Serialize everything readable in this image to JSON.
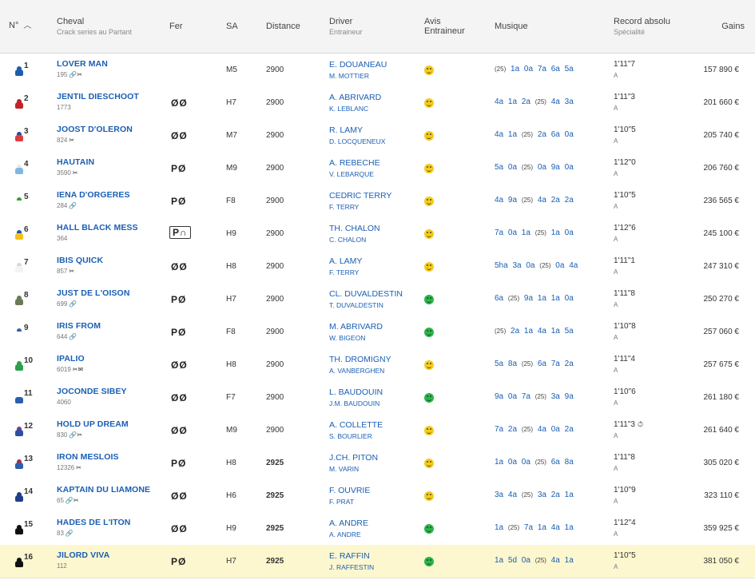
{
  "header": {
    "num": "N°",
    "cheval": "Cheval",
    "cheval_sub": "Crack series au Partant",
    "fer": "Fer",
    "sa": "SA",
    "distance": "Distance",
    "driver": "Driver",
    "driver_sub": "Entraineur",
    "avis": "Avis",
    "avis2": "Entraineur",
    "musique": "Musique",
    "record": "Record absolu",
    "record_sub": "Spécialité",
    "gains": "Gains"
  },
  "colors": {
    "link": "#1a5fb4",
    "highlight_row": "#fdf7cf",
    "avis_yellow": "#f2cb1f",
    "avis_green": "#2db34a"
  },
  "rows": [
    {
      "num": "1",
      "name": "LOVER MAN",
      "info": "195",
      "icons": "🔗✂",
      "fer": "",
      "fer_boxed": false,
      "sa": "M5",
      "dist": "2900",
      "dist_bold": false,
      "driver": "E. DOUANEAU",
      "trainer": "M. MOTTIER",
      "avis": "yellow",
      "music_y": "(25)",
      "music": "1a 0a 7a 6a 5a",
      "music_pre": "",
      "record": "1'11\"7",
      "rec_spec": "A",
      "chrono": "",
      "gains": "157 890 €",
      "silk": [
        "#1e5cb0",
        "#1e5cb0"
      ],
      "highlight": false
    },
    {
      "num": "2",
      "name": "JENTIL DIESCHOOT",
      "info": "1773",
      "icons": "",
      "fer": "ØØ",
      "fer_boxed": false,
      "sa": "H7",
      "dist": "2900",
      "dist_bold": false,
      "driver": "A. ABRIVARD",
      "trainer": "K. LEBLANC",
      "avis": "yellow",
      "music_pre": "4a 1a 2a",
      "music_y": "(25)",
      "music": "4a 3a",
      "record": "1'11\"3",
      "rec_spec": "A",
      "chrono": "",
      "gains": "201 660 €",
      "silk": [
        "#c0242a",
        "#c0242a"
      ],
      "highlight": false
    },
    {
      "num": "3",
      "name": "JOOST D'OLERON",
      "info": "824",
      "icons": "✂",
      "fer": "ØØ",
      "fer_boxed": false,
      "sa": "M7",
      "dist": "2900",
      "dist_bold": false,
      "driver": "R. LAMY",
      "trainer": "D. LOCQUENEUX",
      "avis": "yellow",
      "music_pre": "4a 1a",
      "music_y": "(25)",
      "music": "2a 6a 0a",
      "record": "1'10\"5",
      "rec_spec": "A",
      "chrono": "",
      "gains": "205 740 €",
      "silk": [
        "#e23b3b",
        "#2b4aa0"
      ],
      "highlight": false
    },
    {
      "num": "4",
      "name": "HAUTAIN",
      "info": "3590",
      "icons": "✂",
      "fer": "PØ",
      "fer_boxed": false,
      "sa": "M9",
      "dist": "2900",
      "dist_bold": false,
      "driver": "A. REBECHE",
      "trainer": "V. LEBARQUE",
      "avis": "yellow",
      "music_pre": "5a 0a",
      "music_y": "(25)",
      "music": "0a 9a 0a",
      "record": "1'12\"0",
      "rec_spec": "A",
      "chrono": "",
      "gains": "206 760 €",
      "silk": [
        "#7fb7e0",
        "#e8e8e8"
      ],
      "highlight": false
    },
    {
      "num": "5",
      "name": "IENA D'ORGERES",
      "info": "284",
      "icons": "🔗",
      "fer": "PØ",
      "fer_boxed": false,
      "sa": "F8",
      "dist": "2900",
      "dist_bold": false,
      "driver": "CEDRIC TERRY",
      "trainer": "F. TERRY",
      "avis": "yellow",
      "music_pre": "4a 9a",
      "music_y": "(25)",
      "music": "4a 2a 2a",
      "record": "1'10\"5",
      "rec_spec": "A",
      "chrono": "",
      "gains": "236 565 €",
      "silk": [
        "#ffffff",
        "#3a9b3a"
      ],
      "highlight": false
    },
    {
      "num": "6",
      "name": "HALL BLACK MESS",
      "info": "364",
      "icons": "",
      "fer": "P∩",
      "fer_boxed": true,
      "sa": "H9",
      "dist": "2900",
      "dist_bold": false,
      "driver": "TH. CHALON",
      "trainer": "C. CHALON",
      "avis": "yellow",
      "music_pre": "7a 0a 1a",
      "music_y": "(25)",
      "music": "1a 0a",
      "record": "1'12\"6",
      "rec_spec": "A",
      "chrono": "",
      "gains": "245 100 €",
      "silk": [
        "#f2c21a",
        "#2253a8"
      ],
      "highlight": false
    },
    {
      "num": "7",
      "name": "IBIS QUICK",
      "info": "857",
      "icons": "✂",
      "fer": "ØØ",
      "fer_boxed": false,
      "sa": "H8",
      "dist": "2900",
      "dist_bold": false,
      "driver": "A. LAMY",
      "trainer": "F. TERRY",
      "avis": "yellow",
      "music_pre": "5ha 3a 0a",
      "music_y": "(25)",
      "music": "0a 4a",
      "record": "1'11\"1",
      "rec_spec": "A",
      "chrono": "",
      "gains": "247 310 €",
      "silk": [
        "#f4f4f4",
        "#d8d8d8"
      ],
      "highlight": false
    },
    {
      "num": "8",
      "name": "JUST DE L'OISON",
      "info": "699",
      "icons": "🔗",
      "fer": "PØ",
      "fer_boxed": false,
      "sa": "H7",
      "dist": "2900",
      "dist_bold": false,
      "driver": "CL. DUVALDESTIN",
      "trainer": "T. DUVALDESTIN",
      "avis": "green",
      "music_pre": "6a",
      "music_y": "(25)",
      "music": "9a 1a 1a 0a",
      "record": "1'11\"8",
      "rec_spec": "A",
      "chrono": "",
      "gains": "250 270 €",
      "silk": [
        "#6c7a57",
        "#6c7a57"
      ],
      "highlight": false
    },
    {
      "num": "9",
      "name": "IRIS FROM",
      "info": "644",
      "icons": "🔗",
      "fer": "PØ",
      "fer_boxed": false,
      "sa": "F8",
      "dist": "2900",
      "dist_bold": false,
      "driver": "M. ABRIVARD",
      "trainer": "W. BIGEON",
      "avis": "green",
      "music_pre": "",
      "music_y": "(25)",
      "music": "2a 1a 4a 1a 5a",
      "record": "1'10\"8",
      "rec_spec": "A",
      "chrono": "",
      "gains": "257 060 €",
      "silk": [
        "#ffffff",
        "#3b5fb0"
      ],
      "highlight": false
    },
    {
      "num": "10",
      "name": "IPALIO",
      "info": "6019",
      "icons": "✂✉",
      "fer": "ØØ",
      "fer_boxed": false,
      "sa": "H8",
      "dist": "2900",
      "dist_bold": false,
      "driver": "TH. DROMIGNY",
      "trainer": "A. VANBERGHEN",
      "avis": "yellow",
      "music_pre": "5a 8a",
      "music_y": "(25)",
      "music": "6a 7a 2a",
      "record": "1'11\"4",
      "rec_spec": "A",
      "chrono": "",
      "gains": "257 675 €",
      "silk": [
        "#2aa14a",
        "#2aa14a"
      ],
      "highlight": false
    },
    {
      "num": "11",
      "name": "JOCONDE SIBEY",
      "info": "4060",
      "icons": "",
      "fer": "ØØ",
      "fer_boxed": false,
      "sa": "F7",
      "dist": "2900",
      "dist_bold": false,
      "driver": "L. BAUDOUIN",
      "trainer": "J.M. BAUDOUIN",
      "avis": "green",
      "music_pre": "9a 0a 7a",
      "music_y": "(25)",
      "music": "3a 9a",
      "record": "1'10\"6",
      "rec_spec": "A",
      "chrono": "",
      "gains": "261 180 €",
      "silk": [
        "#2d5dae",
        "#ffffff"
      ],
      "highlight": false
    },
    {
      "num": "12",
      "name": "HOLD UP DREAM",
      "info": "830",
      "icons": "🔗✂",
      "fer": "ØØ",
      "fer_boxed": false,
      "sa": "M9",
      "dist": "2900",
      "dist_bold": false,
      "driver": "A. COLLETTE",
      "trainer": "S. BOURLIER",
      "avis": "yellow",
      "music_pre": "7a 2a",
      "music_y": "(25)",
      "music": "4a 0a 2a",
      "record": "1'11\"3",
      "rec_spec": "A",
      "chrono": "⏱",
      "gains": "261 640 €",
      "silk": [
        "#2f4fa0",
        "#7a3a8a"
      ],
      "highlight": false
    },
    {
      "num": "13",
      "name": "IRON MESLOIS",
      "info": "12326",
      "icons": "✂",
      "fer": "PØ",
      "fer_boxed": false,
      "sa": "H8",
      "dist": "2925",
      "dist_bold": true,
      "driver": "J.CH. PITON",
      "trainer": "M. VARIN",
      "avis": "yellow",
      "music_pre": "1a 0a 0a",
      "music_y": "(25)",
      "music": "6a 8a",
      "record": "1'11\"8",
      "rec_spec": "A",
      "chrono": "",
      "gains": "305 020 €",
      "silk": [
        "#2f5fae",
        "#c02a2a"
      ],
      "highlight": false
    },
    {
      "num": "14",
      "name": "KAPTAIN DU LIAMONE",
      "info": "65",
      "icons": "🔗✂",
      "fer": "ØØ",
      "fer_boxed": false,
      "sa": "H6",
      "dist": "2925",
      "dist_bold": true,
      "driver": "F. OUVRIE",
      "trainer": "F. PRAT",
      "avis": "yellow",
      "music_pre": "3a 4a",
      "music_y": "(25)",
      "music": "3a 2a 1a",
      "record": "1'10\"9",
      "rec_spec": "A",
      "chrono": "",
      "gains": "323 110 €",
      "silk": [
        "#1e3f8a",
        "#1e3f8a"
      ],
      "highlight": false
    },
    {
      "num": "15",
      "name": "HADES DE L'ITON",
      "info": "83",
      "icons": "🔗",
      "fer": "ØØ",
      "fer_boxed": false,
      "sa": "H9",
      "dist": "2925",
      "dist_bold": true,
      "driver": "A. ANDRE",
      "trainer": "A. ANDRE",
      "avis": "green",
      "music_pre": "1a",
      "music_y": "(25)",
      "music": "7a 1a 4a 1a",
      "record": "1'12\"4",
      "rec_spec": "A",
      "chrono": "",
      "gains": "359 925 €",
      "silk": [
        "#111111",
        "#111111"
      ],
      "highlight": false
    },
    {
      "num": "16",
      "name": "JILORD VIVA",
      "info": "112",
      "icons": "",
      "fer": "PØ",
      "fer_boxed": false,
      "sa": "H7",
      "dist": "2925",
      "dist_bold": true,
      "driver": "E. RAFFIN",
      "trainer": "J. RAFFESTIN",
      "avis": "green",
      "music_pre": "1a 5d 0a",
      "music_y": "(25)",
      "music": "4a 1a",
      "record": "1'10\"5",
      "rec_spec": "A",
      "chrono": "",
      "gains": "381 050 €",
      "silk": [
        "#111111",
        "#111111"
      ],
      "highlight": true
    }
  ]
}
